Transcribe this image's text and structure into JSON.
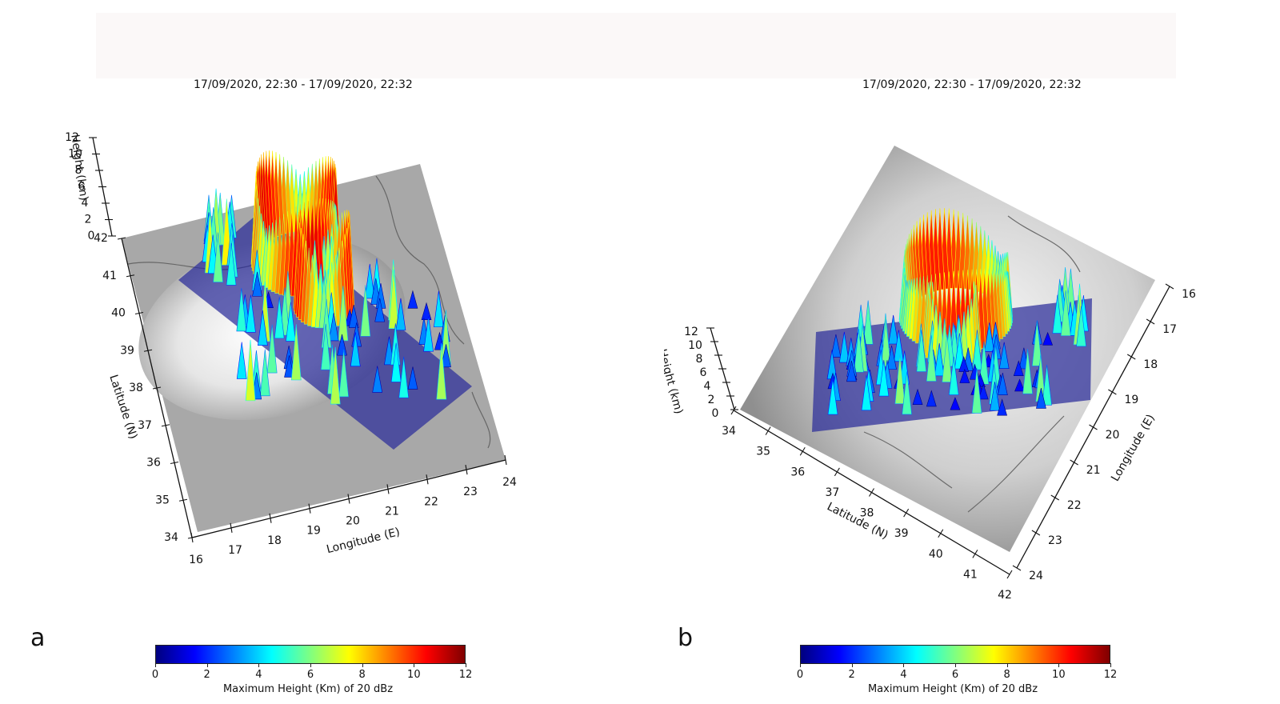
{
  "panels": [
    {
      "letter": "a",
      "time_range": "17/09/2020, 22:30 - 17/09/2020, 22:32",
      "chart_data": {
        "type": "surface3d",
        "title": "17/09/2020, 22:30 - 17/09/2020, 22:32",
        "xlabel": "Longitude (E)",
        "ylabel": "Latitude (N)",
        "zlabel": "Height (km)",
        "x_ticks": [
          16,
          17,
          18,
          19,
          20,
          21,
          22,
          23,
          24
        ],
        "y_ticks": [
          34,
          35,
          36,
          37,
          38,
          39,
          40,
          41,
          42
        ],
        "z_ticks": [
          0,
          2,
          4,
          6,
          8,
          10,
          12
        ],
        "xlim": [
          16,
          24
        ],
        "ylim": [
          34,
          42
        ],
        "zlim": [
          0,
          12
        ],
        "colorbar": {
          "label": "Maximum Height (Km) of 20 dBz",
          "ticks": [
            0,
            2,
            4,
            6,
            8,
            10,
            12
          ],
          "range": [
            0,
            12
          ],
          "colormap": [
            "#00007f",
            "#0000ff",
            "#0080ff",
            "#00ffff",
            "#80ff80",
            "#ffff00",
            "#ff8000",
            "#ff0000",
            "#7f0000"
          ]
        }
      }
    },
    {
      "letter": "b",
      "time_range": "17/09/2020, 22:30 - 17/09/2020, 22:32",
      "chart_data": {
        "type": "surface3d",
        "title": "17/09/2020, 22:30 - 17/09/2020, 22:32",
        "xlabel": "Latitude (N)",
        "ylabel": "Longitude (E)",
        "zlabel": "Height (km)",
        "x_ticks": [
          34,
          35,
          36,
          37,
          38,
          39,
          40,
          41,
          42
        ],
        "y_ticks": [
          16,
          17,
          18,
          19,
          20,
          21,
          22,
          23,
          24
        ],
        "z_ticks": [
          0,
          2,
          4,
          6,
          8,
          10,
          12
        ],
        "xlim": [
          34,
          42
        ],
        "ylim": [
          16,
          24
        ],
        "zlim": [
          0,
          12
        ],
        "colorbar": {
          "label": "Maximum Height (Km) of 20 dBz",
          "ticks": [
            0,
            2,
            4,
            6,
            8,
            10,
            12
          ],
          "range": [
            0,
            12
          ],
          "colormap": [
            "#00007f",
            "#0000ff",
            "#0080ff",
            "#00ffff",
            "#80ff80",
            "#ffff00",
            "#ff8000",
            "#ff0000",
            "#7f0000"
          ]
        }
      }
    }
  ]
}
